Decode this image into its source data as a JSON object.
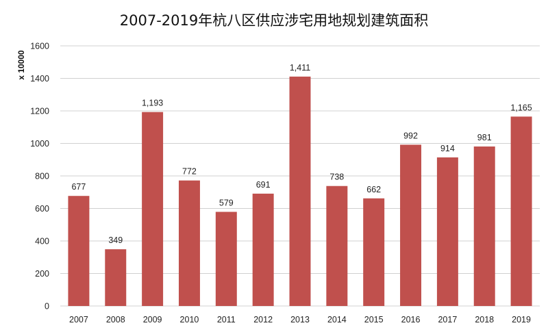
{
  "chart_data": {
    "type": "bar",
    "title": "2007-2019年杭八区供应涉宅用地规划建筑面积",
    "ylabel": "x 10000",
    "xlabel": "",
    "categories": [
      "2007",
      "2008",
      "2009",
      "2010",
      "2011",
      "2012",
      "2013",
      "2014",
      "2015",
      "2016",
      "2017",
      "2018",
      "2019"
    ],
    "values": [
      677,
      349,
      1193,
      772,
      579,
      691,
      1411,
      738,
      662,
      992,
      914,
      981,
      1165
    ],
    "data_labels": [
      "677",
      "349",
      "1,193",
      "772",
      "579",
      "691",
      "1,411",
      "738",
      "662",
      "992",
      "914",
      "981",
      "1,165"
    ],
    "ylim": [
      0,
      1600
    ],
    "yticks": [
      0,
      200,
      400,
      600,
      800,
      1000,
      1200,
      1400,
      1600
    ],
    "grid": true,
    "legend": "none",
    "bar_color": "#c0504d"
  }
}
